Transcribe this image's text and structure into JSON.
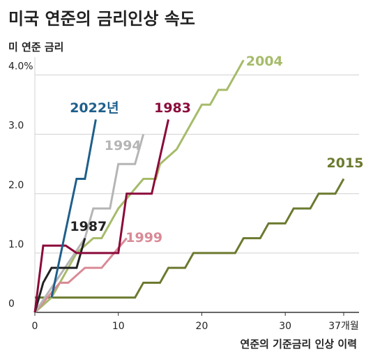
{
  "chart_data": {
    "type": "line",
    "title": "미국 연준의 금리인상 속도",
    "y_label": "미 연준 금리",
    "x_label": "연준의 기준금리 인상 이력",
    "xlim": [
      0,
      37
    ],
    "ylim": [
      0,
      4.3
    ],
    "xticks": [
      0,
      10,
      20,
      30,
      {
        "value": 37,
        "label": "37개월"
      }
    ],
    "yticks": [
      0,
      {
        "value": 1,
        "label": "1.0"
      },
      {
        "value": 2,
        "label": "2.0"
      },
      {
        "value": 3,
        "label": "3.0"
      },
      {
        "value": 4,
        "label": "4.0%"
      }
    ],
    "grid": true,
    "series": [
      {
        "name": "2015",
        "color": "#6b7a2f",
        "x": [
          0,
          12,
          13,
          15,
          16,
          18,
          19,
          24,
          25,
          27,
          28,
          30,
          31,
          33,
          34,
          36,
          37
        ],
        "values": [
          0.25,
          0.25,
          0.5,
          0.5,
          0.75,
          0.75,
          1.0,
          1.0,
          1.25,
          1.25,
          1.5,
          1.5,
          1.75,
          1.75,
          2.0,
          2.0,
          2.25
        ]
      },
      {
        "name": "2004",
        "color": "#a6bb6a",
        "x": [
          0,
          2,
          5,
          7,
          8,
          10,
          11.5,
          13,
          14.5,
          15,
          17,
          18,
          20,
          21,
          22,
          23,
          25
        ],
        "values": [
          0,
          0.25,
          1.0,
          1.25,
          1.25,
          1.75,
          2.0,
          2.25,
          2.25,
          2.5,
          2.75,
          3.0,
          3.5,
          3.5,
          3.75,
          3.75,
          4.25
        ]
      },
      {
        "name": "1999",
        "color": "#d98a96",
        "x": [
          0,
          3,
          4,
          6,
          8,
          9.5,
          11
        ],
        "values": [
          0,
          0.5,
          0.5,
          0.75,
          0.75,
          1.0,
          1.25
        ]
      },
      {
        "name": "1994",
        "color": "#b5b5b5",
        "x": [
          0,
          6,
          7,
          9,
          10,
          12,
          13
        ],
        "values": [
          0,
          1.25,
          1.75,
          1.75,
          2.5,
          2.5,
          3.0
        ]
      },
      {
        "name": "1987",
        "color": "#222222",
        "x": [
          0,
          1,
          2,
          5,
          6
        ],
        "values": [
          0,
          0.5,
          0.75,
          0.75,
          1.25
        ]
      },
      {
        "name": "1983",
        "color": "#8b0a3a",
        "x": [
          0,
          1,
          3.7,
          5,
          10,
          11,
          14,
          16
        ],
        "values": [
          0,
          1.125,
          1.125,
          1.0,
          1.0,
          2.0,
          2.0,
          3.25
        ]
      },
      {
        "name": "2022년",
        "color": "#1f5f8b",
        "x": [
          2,
          5,
          6,
          7.3
        ],
        "values": [
          0.25,
          2.25,
          2.25,
          3.25
        ]
      }
    ]
  }
}
